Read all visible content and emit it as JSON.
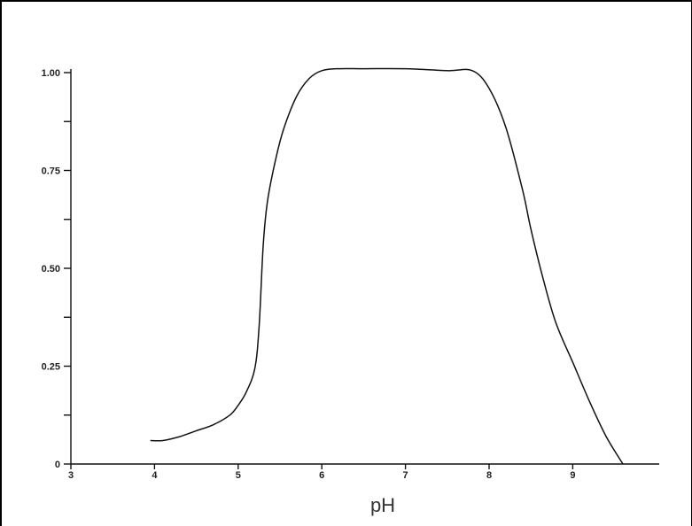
{
  "chart_data": {
    "type": "line",
    "xlabel": "pH",
    "ylabel": "",
    "xlim": [
      3,
      10.2
    ],
    "ylim": [
      0,
      1.0
    ],
    "x_ticks": [
      3,
      4,
      5,
      6,
      7,
      8,
      9
    ],
    "x_tick_labels": [
      "3",
      "4",
      "5",
      "6",
      "7",
      "8",
      "9"
    ],
    "y_ticks": [
      0,
      0.125,
      0.25,
      0.375,
      0.5,
      0.625,
      0.75,
      0.875,
      1.0
    ],
    "y_tick_labels": [
      "0",
      "",
      "0.25",
      "",
      "0.50",
      "",
      "0.75",
      "",
      "1.00"
    ],
    "grid": false,
    "series": [
      {
        "x": [
          3.95,
          4.1,
          4.3,
          4.5,
          4.7,
          4.9,
          5.0,
          5.1,
          5.2,
          5.25,
          5.3,
          5.35,
          5.45,
          5.55,
          5.7,
          5.85,
          6.0,
          6.2,
          6.5,
          7.0,
          7.5,
          7.8,
          8.0,
          8.2,
          8.4,
          8.5,
          8.65,
          8.8,
          9.0,
          9.2,
          9.4,
          9.6
        ],
        "y": [
          0.06,
          0.06,
          0.07,
          0.085,
          0.1,
          0.125,
          0.15,
          0.185,
          0.245,
          0.35,
          0.56,
          0.67,
          0.78,
          0.86,
          0.94,
          0.985,
          1.005,
          1.01,
          1.01,
          1.01,
          1.005,
          1.005,
          0.96,
          0.86,
          0.7,
          0.6,
          0.47,
          0.36,
          0.26,
          0.16,
          0.07,
          0.0
        ]
      }
    ]
  }
}
